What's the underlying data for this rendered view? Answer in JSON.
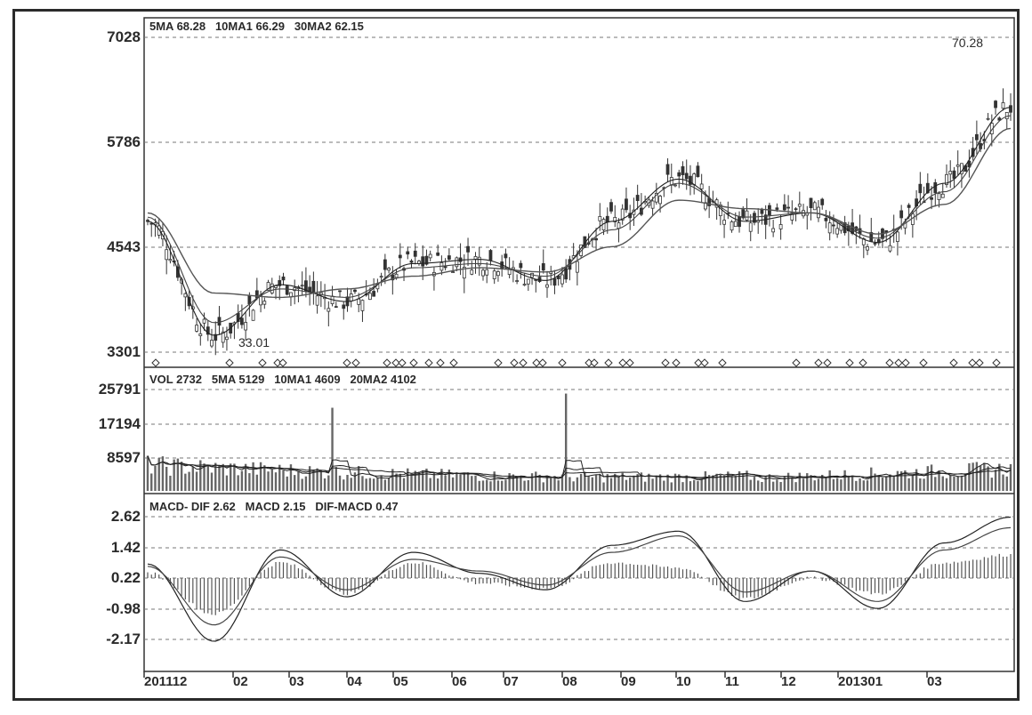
{
  "chart_data": [
    {
      "type": "line",
      "panel": "price",
      "legend": "5MA 68.28   10MA1 66.29   30MA2 62.15",
      "y_ticks": [
        "7028",
        "5786",
        "4543",
        "3301"
      ],
      "ylim": [
        3301,
        7028
      ],
      "annotations": [
        {
          "text": "33.01",
          "x_month": "02"
        },
        {
          "text": "70.28",
          "x_month": "03"
        }
      ],
      "grid": true,
      "x": [
        "201112",
        "02",
        "03",
        "04",
        "05",
        "06",
        "07",
        "08",
        "09",
        "10",
        "11",
        "12",
        "201301",
        "03"
      ],
      "series": [
        {
          "name": "5MA",
          "values": [
            4850,
            3500,
            4100,
            3900,
            4350,
            4400,
            4150,
            4850,
            5350,
            4850,
            4950,
            4600,
            5300,
            6200
          ]
        },
        {
          "name": "10MA1",
          "values": [
            4900,
            3650,
            4050,
            3950,
            4300,
            4350,
            4200,
            4750,
            5300,
            4900,
            4950,
            4650,
            5200,
            6100
          ]
        },
        {
          "name": "30MA2",
          "values": [
            4950,
            4000,
            3950,
            4050,
            4200,
            4300,
            4250,
            4550,
            5100,
            5000,
            4950,
            4700,
            5050,
            5950
          ]
        }
      ]
    },
    {
      "type": "bar",
      "panel": "volume",
      "legend": "VOL 2732   5MA 5129   10MA1 4609   20MA2 4102",
      "y_ticks": [
        "25791",
        "17194",
        "8597"
      ],
      "ylim": [
        0,
        25791
      ],
      "grid": true
    },
    {
      "type": "line",
      "panel": "macd",
      "legend": "MACD- DIF 2.62   MACD 2.15   DIF-MACD 0.47",
      "y_ticks": [
        "2.62",
        "1.42",
        "0.22",
        "-0.98",
        "-2.17"
      ],
      "ylim": [
        -2.8,
        2.8
      ],
      "grid": true,
      "series": [
        {
          "name": "DIF",
          "values": [
            0.6,
            -2.7,
            1.2,
            -0.8,
            1.1,
            0.2,
            -0.5,
            1.4,
            2.0,
            -1.0,
            0.3,
            -1.3,
            1.5,
            2.6
          ]
        },
        {
          "name": "MACD",
          "values": [
            0.5,
            -2.0,
            0.9,
            -0.5,
            0.8,
            0.3,
            -0.3,
            1.1,
            1.8,
            -0.6,
            0.3,
            -1.0,
            1.2,
            2.15
          ]
        }
      ]
    }
  ],
  "x_axis_labels": [
    "201112",
    "02",
    "03",
    "04",
    "05",
    "06",
    "07",
    "08",
    "09",
    "10",
    "11",
    "12",
    "201301",
    "03"
  ]
}
